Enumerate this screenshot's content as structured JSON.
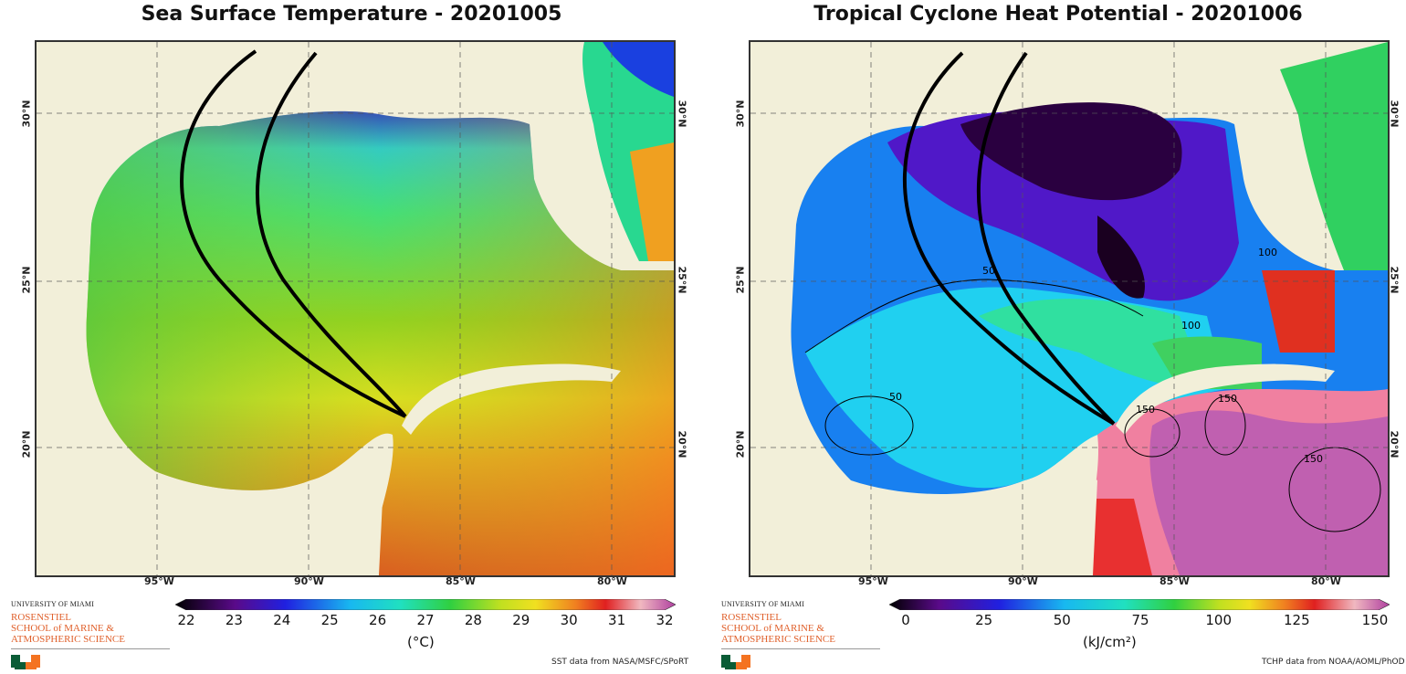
{
  "left": {
    "title": "Sea Surface Temperature - 20201005",
    "lat_labels": [
      "30°N",
      "25°N",
      "20°N"
    ],
    "lon_labels": [
      "95°W",
      "90°W",
      "85°W",
      "80°W"
    ],
    "colorbar_ticks": [
      "22",
      "23",
      "24",
      "25",
      "26",
      "27",
      "28",
      "29",
      "30",
      "31",
      "32"
    ],
    "colorbar_unit": "(°C)",
    "credit": "SST data from NASA/MSFC/SPoRT"
  },
  "right": {
    "title": "Tropical Cyclone Heat Potential - 20201006",
    "lat_labels": [
      "30°N",
      "25°N",
      "20°N"
    ],
    "lon_labels": [
      "95°W",
      "90°W",
      "85°W",
      "80°W"
    ],
    "colorbar_ticks": [
      "0",
      "25",
      "50",
      "75",
      "100",
      "125",
      "150"
    ],
    "colorbar_unit": "(kJ/cm²)",
    "contour_labels": [
      "50",
      "50",
      "100",
      "100",
      "150",
      "150",
      "150"
    ],
    "credit": "TCHP data from NOAA/AOML/PhOD"
  },
  "logo": {
    "line1": "UNIVERSITY OF MIAMI",
    "line2": "ROSENSTIEL",
    "line3": "SCHOOL of MARINE &",
    "line4": "ATMOSPHERIC SCIENCE"
  },
  "colors": {
    "land": "#f2efd9",
    "track": "#000000",
    "logo_orange": "#e0602b",
    "logo_green": "#0a5c36"
  }
}
